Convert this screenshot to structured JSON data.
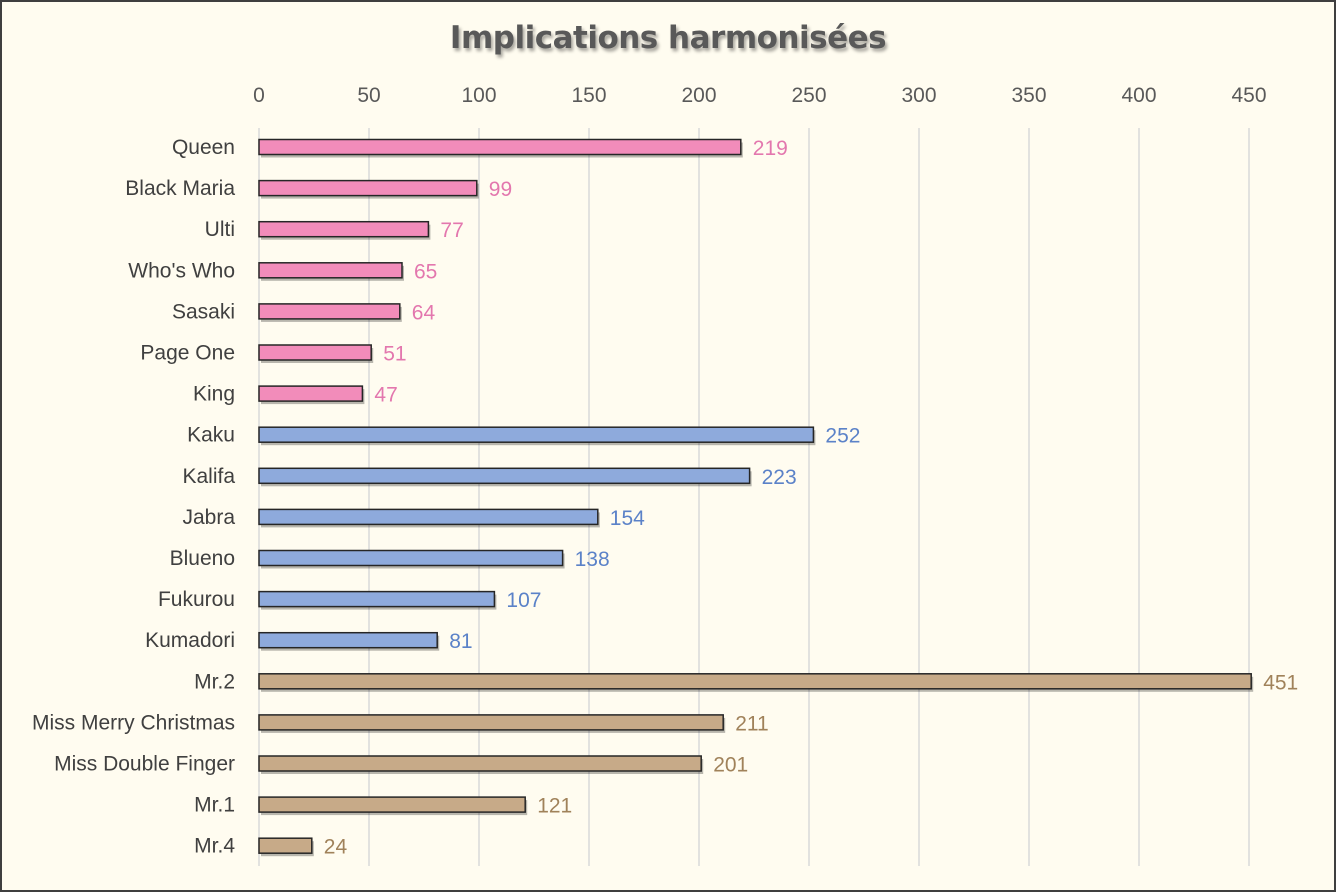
{
  "chart_data": {
    "type": "bar",
    "orientation": "horizontal",
    "title": "Implications harmonisées",
    "xlabel": "",
    "ylabel": "",
    "xlim": [
      0,
      450
    ],
    "x_ticks": [
      "0",
      "50",
      "100",
      "150",
      "200",
      "250",
      "300",
      "350",
      "400",
      "450"
    ],
    "axis_position": "top",
    "grid": true,
    "legend": "none",
    "colors": {
      "pink": "#f28cba",
      "blue": "#8eaadc",
      "tan": "#c7aa88",
      "pink_label": "#e377ae",
      "blue_label": "#5b82c8",
      "tan_label": "#a0825a",
      "background": "#fffcf0",
      "gridline": "#d9d9d9",
      "bar_outline": "#262626"
    },
    "categories": [
      "Queen",
      "Black Maria",
      "Ulti",
      "Who's Who",
      "Sasaki",
      "Page One",
      "King",
      "Kaku",
      "Kalifa",
      "Jabra",
      "Blueno",
      "Fukurou",
      "Kumadori",
      "Mr.2",
      "Miss Merry Christmas",
      "Miss Double Finger",
      "Mr.1",
      "Mr.4"
    ],
    "values": [
      219,
      99,
      77,
      65,
      64,
      51,
      47,
      252,
      223,
      154,
      138,
      107,
      81,
      451,
      211,
      201,
      121,
      24
    ],
    "bar_color_groups": [
      "pink",
      "pink",
      "pink",
      "pink",
      "pink",
      "pink",
      "pink",
      "blue",
      "blue",
      "blue",
      "blue",
      "blue",
      "blue",
      "tan",
      "tan",
      "tan",
      "tan",
      "tan"
    ]
  }
}
